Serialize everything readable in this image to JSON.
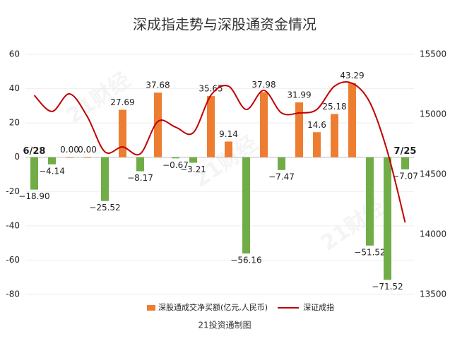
{
  "chart_data": {
    "type": "bar_line",
    "title": "深成指走势与深股通资金情况",
    "footer": "21投资通制图",
    "watermark": "21财经",
    "categories": [
      "6/28",
      null,
      null,
      null,
      null,
      null,
      null,
      null,
      null,
      null,
      null,
      null,
      null,
      null,
      null,
      null,
      null,
      null,
      null,
      null,
      null,
      "7/25"
    ],
    "series": [
      {
        "name": "深股通成交净买额(亿元,人民币)",
        "type": "bar",
        "color": "#ed7d31",
        "negative_color": "#70ad47",
        "values": [
          -18.9,
          -4.14,
          0,
          0,
          -25.52,
          27.69,
          -8.17,
          37.68,
          -0.67,
          -3.21,
          35.65,
          9.14,
          -56.16,
          37.98,
          -7.47,
          31.99,
          14.6,
          25.18,
          43.29,
          -51.52,
          -71.52,
          -7.07
        ],
        "value_labels": [
          "−18.90",
          "−4.14",
          "0.00",
          "0.00",
          "−25.52",
          "27.69",
          "−8.17",
          "37.68",
          "−0.67",
          "−3.21",
          "35.65",
          "9.14",
          "−56.16",
          "37.98",
          "−7.47",
          "31.99",
          "14.6",
          "25.18",
          "43.29",
          "−51.52",
          "−71.52",
          "−7.07"
        ]
      },
      {
        "name": "深证成指",
        "type": "line",
        "axis": "y2",
        "color": "#c00000",
        "values": [
          15159,
          15024,
          15171,
          14982,
          14688,
          14729,
          14671,
          14941,
          14894,
          14847,
          15159,
          15235,
          15041,
          15200,
          15012,
          15012,
          15041,
          15235,
          15259,
          15100,
          14688,
          14100
        ]
      }
    ],
    "ylim": [
      -80,
      60
    ],
    "yticks": [
      -80,
      -60,
      -40,
      -20,
      0,
      20,
      40,
      60
    ],
    "y2lim": [
      13500,
      15500
    ],
    "y2ticks": [
      13500,
      14000,
      14500,
      15000,
      15500
    ],
    "grid": true
  }
}
